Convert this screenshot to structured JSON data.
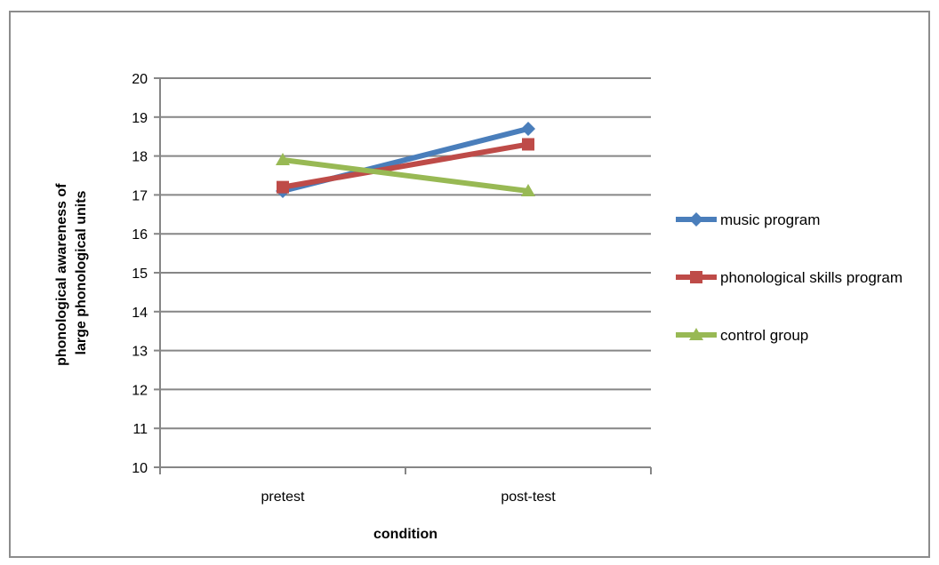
{
  "chart_data": {
    "type": "line",
    "title": "",
    "categories": [
      "pretest",
      "post-test"
    ],
    "xlabel": "condition",
    "ylabel": [
      "phonological awareness of",
      "large phonological units"
    ],
    "ylim": [
      10,
      20
    ],
    "yticks": [
      10,
      11,
      12,
      13,
      14,
      15,
      16,
      17,
      18,
      19,
      20
    ],
    "grid": true,
    "legend_position": "right",
    "series": [
      {
        "name": "music program",
        "values": [
          17.1,
          18.7
        ],
        "color": "#4a7ebb",
        "marker": "diamond"
      },
      {
        "name": "phonological skills program",
        "values": [
          17.2,
          18.3
        ],
        "color": "#be4b48",
        "marker": "square"
      },
      {
        "name": "control group",
        "values": [
          17.9,
          17.1
        ],
        "color": "#98b954",
        "marker": "triangle"
      }
    ]
  }
}
